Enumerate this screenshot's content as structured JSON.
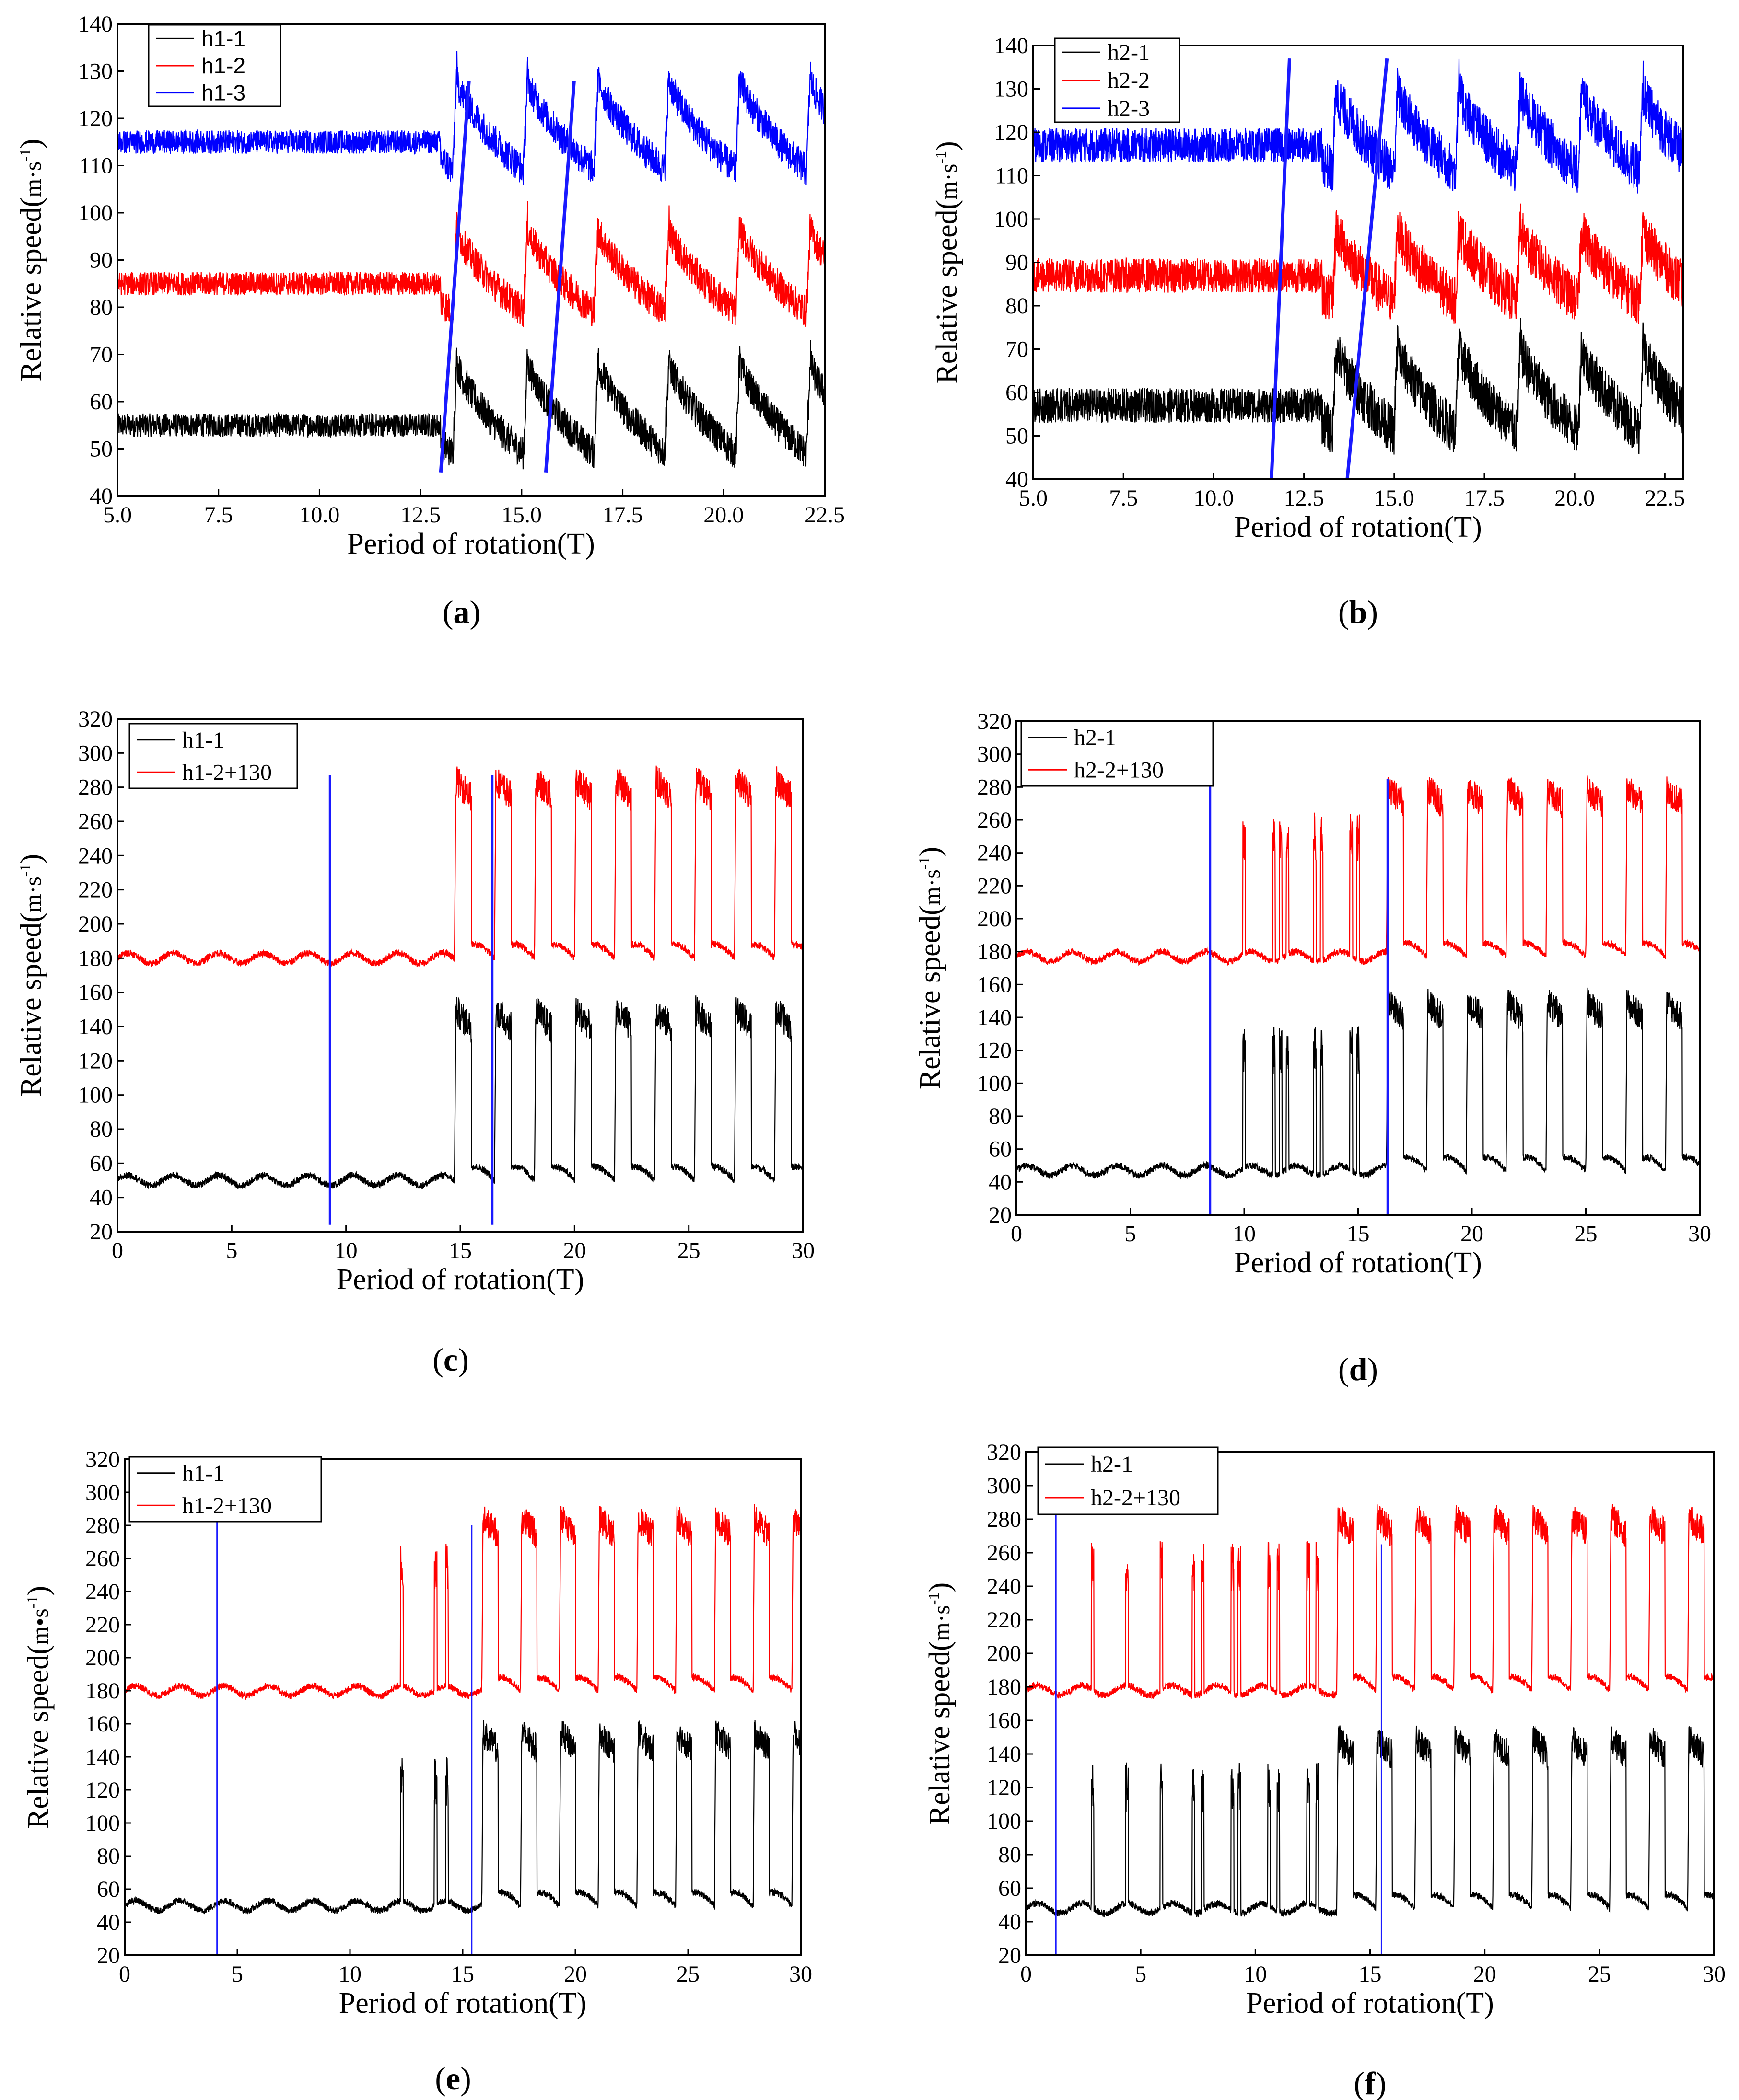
{
  "chart_data": [
    {
      "panel": "(a)",
      "label_letter": "a",
      "type": "line",
      "xlabel": "Period of rotation(T)",
      "ylabel": "Relative speed",
      "yunit": "m·s",
      "xlim": [
        5,
        22.5
      ],
      "ylim": [
        40,
        140
      ],
      "xticks": [
        5.0,
        7.5,
        10.0,
        12.5,
        15.0,
        17.5,
        20.0,
        22.5
      ],
      "yticks": [
        40,
        50,
        60,
        70,
        80,
        90,
        100,
        110,
        120,
        130,
        140
      ],
      "xtick_labels": [
        "5.0",
        "7.5",
        "10.0",
        "12.5",
        "15.0",
        "17.5",
        "20.0",
        "22.5"
      ],
      "series": [
        {
          "name": "h1-1",
          "color": "#000000",
          "base": 55,
          "amp": 5,
          "peak": 72,
          "spike_period": 1.75,
          "spike_start": 13.3
        },
        {
          "name": "h1-2",
          "color": "#ff0000",
          "base": 85,
          "amp": 5,
          "peak": 100,
          "spike_period": 1.75,
          "spike_start": 13.3
        },
        {
          "name": "h1-3",
          "color": "#0000ff",
          "base": 115,
          "amp": 5,
          "peak": 132,
          "spike_period": 1.75,
          "spike_start": 13.3
        }
      ],
      "markers": [
        {
          "x1": 13.0,
          "y1": 45,
          "x2": 13.7,
          "y2": 128
        },
        {
          "x1": 15.6,
          "y1": 45,
          "x2": 16.3,
          "y2": 128
        }
      ],
      "marker_width": 7,
      "legend_style": "sans",
      "mode": "periodic"
    },
    {
      "panel": "(b)",
      "label_letter": "b",
      "type": "line",
      "xlabel": "Period of rotation(T)",
      "ylabel": "Relative speed",
      "yunit": "m·s",
      "xlim": [
        5,
        23
      ],
      "ylim": [
        40,
        140
      ],
      "xticks": [
        5.0,
        7.5,
        10.0,
        12.5,
        15.0,
        17.5,
        20.0,
        22.5
      ],
      "yticks": [
        40,
        50,
        60,
        70,
        80,
        90,
        100,
        110,
        120,
        130,
        140
      ],
      "xtick_labels": [
        "5.0",
        "7.5",
        "10.0",
        "12.5",
        "15.0",
        "17.5",
        "20.0",
        "22.5"
      ],
      "series": [
        {
          "name": "h2-1",
          "color": "#000000",
          "base": 57,
          "amp": 8,
          "peak": 74,
          "spike_period": 1.7,
          "spike_start": 13.3
        },
        {
          "name": "h2-2",
          "color": "#ff0000",
          "base": 87,
          "amp": 8,
          "peak": 101,
          "spike_period": 1.7,
          "spike_start": 13.3
        },
        {
          "name": "h2-3",
          "color": "#0000ff",
          "base": 117,
          "amp": 8,
          "peak": 133,
          "spike_period": 1.7,
          "spike_start": 13.3
        }
      ],
      "markers": [
        {
          "x1": 11.6,
          "y1": 40,
          "x2": 12.1,
          "y2": 137
        },
        {
          "x1": 13.7,
          "y1": 40,
          "x2": 14.8,
          "y2": 137
        }
      ],
      "marker_width": 7,
      "legend_style": "serif",
      "mode": "periodic"
    },
    {
      "panel": "(c)",
      "label_letter": "c",
      "type": "line",
      "xlabel": "Period of rotation(T)",
      "ylabel": "Relative speed",
      "yunit": "m·s",
      "xlim": [
        0,
        30
      ],
      "ylim": [
        20,
        320
      ],
      "xticks": [
        0,
        5,
        10,
        15,
        20,
        25,
        30
      ],
      "yticks": [
        20,
        40,
        60,
        80,
        100,
        120,
        140,
        160,
        180,
        200,
        220,
        240,
        260,
        280,
        300,
        320
      ],
      "xtick_labels": [
        "0",
        "5",
        "10",
        "15",
        "20",
        "25",
        "30"
      ],
      "series": [
        {
          "name": "h1-1",
          "color": "#000000",
          "base": 50,
          "amp": 4,
          "peak": 150,
          "spike_period": 1.75,
          "spike_start": 14.8
        },
        {
          "name": "h1-2+130",
          "color": "#ff0000",
          "base": 180,
          "amp": 4,
          "peak": 285,
          "spike_period": 1.75,
          "spike_start": 14.8
        }
      ],
      "markers": [
        {
          "x1": 9.3,
          "y1": 24,
          "x2": 9.3,
          "y2": 287
        },
        {
          "x1": 16.4,
          "y1": 24,
          "x2": 16.4,
          "y2": 287
        }
      ],
      "marker_width": 5,
      "legend_style": "serif",
      "mode": "surge",
      "pre_spikes": []
    },
    {
      "panel": "(d)",
      "label_letter": "d",
      "type": "line",
      "xlabel": "Period of  rotation(T)",
      "ylabel": "Relative speed",
      "yunit": "m·s",
      "xlim": [
        0,
        30
      ],
      "ylim": [
        20,
        320
      ],
      "xticks": [
        0,
        5,
        10,
        15,
        20,
        25,
        30
      ],
      "yticks": [
        20,
        40,
        60,
        80,
        100,
        120,
        140,
        160,
        180,
        200,
        220,
        240,
        260,
        280,
        300,
        320
      ],
      "xtick_labels": [
        "0",
        "5",
        "10",
        "15",
        "20",
        "25",
        "30"
      ],
      "series": [
        {
          "name": "h2-1",
          "color": "#000000",
          "base": 47,
          "amp": 4,
          "peak": 150,
          "spike_period": 1.75,
          "spike_start": 16.3
        },
        {
          "name": "h2-2+130",
          "color": "#ff0000",
          "base": 177,
          "amp": 4,
          "peak": 280,
          "spike_period": 1.75,
          "spike_start": 16.3
        }
      ],
      "markers": [
        {
          "x1": 8.5,
          "y1": 20,
          "x2": 8.5,
          "y2": 285
        },
        {
          "x1": 16.3,
          "y1": 20,
          "x2": 16.3,
          "y2": 285
        }
      ],
      "marker_width": 5,
      "legend_style": "serif",
      "mode": "surge",
      "pre_spikes": [
        10.0,
        11.3,
        11.6,
        11.9,
        13.1,
        13.4,
        14.7,
        15.0
      ]
    },
    {
      "panel": "(e)",
      "label_letter": "e",
      "type": "line",
      "xlabel": "Period of rotation(T)",
      "ylabel": "Relative speed",
      "yunit": "m•s",
      "xlim": [
        0,
        30
      ],
      "ylim": [
        20,
        320
      ],
      "xticks": [
        0,
        5,
        10,
        15,
        20,
        25,
        30
      ],
      "yticks": [
        20,
        40,
        60,
        80,
        100,
        120,
        140,
        160,
        180,
        200,
        220,
        240,
        260,
        280,
        300,
        320
      ],
      "xtick_labels": [
        "0",
        "5",
        "10",
        "15",
        "20",
        "25",
        "30"
      ],
      "series": [
        {
          "name": "h1-1",
          "color": "#000000",
          "base": 50,
          "amp": 4,
          "peak": 155,
          "spike_period": 1.72,
          "spike_start": 15.9
        },
        {
          "name": "h1-2+130",
          "color": "#ff0000",
          "base": 180,
          "amp": 4,
          "peak": 285,
          "spike_period": 1.72,
          "spike_start": 15.9
        }
      ],
      "markers": [
        {
          "x1": 4.1,
          "y1": 20,
          "x2": 4.1,
          "y2": 290
        },
        {
          "x1": 15.4,
          "y1": 20,
          "x2": 15.4,
          "y2": 280
        }
      ],
      "marker_width": 3,
      "legend_style": "serif",
      "mode": "surge",
      "pre_spikes": [
        12.3,
        13.8,
        14.3
      ]
    },
    {
      "panel": "(f)",
      "label_letter": "f",
      "type": "line",
      "xlabel": "Period of rotation(T)",
      "ylabel": "Relative speed",
      "yunit": "m·s",
      "xlim": [
        0,
        30
      ],
      "ylim": [
        20,
        320
      ],
      "xticks": [
        0,
        5,
        10,
        15,
        20,
        25,
        30
      ],
      "yticks": [
        20,
        40,
        60,
        80,
        100,
        120,
        140,
        160,
        180,
        200,
        220,
        240,
        260,
        280,
        300,
        320
      ],
      "xtick_labels": [
        "0",
        "5",
        "10",
        "15",
        "20",
        "25",
        "30"
      ],
      "series": [
        {
          "name": "h2-1",
          "color": "#000000",
          "base": 48,
          "amp": 4,
          "peak": 150,
          "spike_period": 1.7,
          "spike_start": 13.6
        },
        {
          "name": "h2-2+130",
          "color": "#ff0000",
          "base": 178,
          "amp": 4,
          "peak": 282,
          "spike_period": 1.7,
          "spike_start": 13.6
        }
      ],
      "markers": [
        {
          "x1": 1.3,
          "y1": 20,
          "x2": 1.3,
          "y2": 290
        },
        {
          "x1": 15.5,
          "y1": 20,
          "x2": 15.5,
          "y2": 265
        }
      ],
      "marker_width": 3,
      "legend_style": "serif",
      "mode": "surge",
      "pre_spikes": [
        2.9,
        4.4,
        5.9,
        7.3,
        7.7,
        9.0,
        9.3,
        10.6,
        11.0,
        12.3,
        12.7
      ]
    }
  ]
}
